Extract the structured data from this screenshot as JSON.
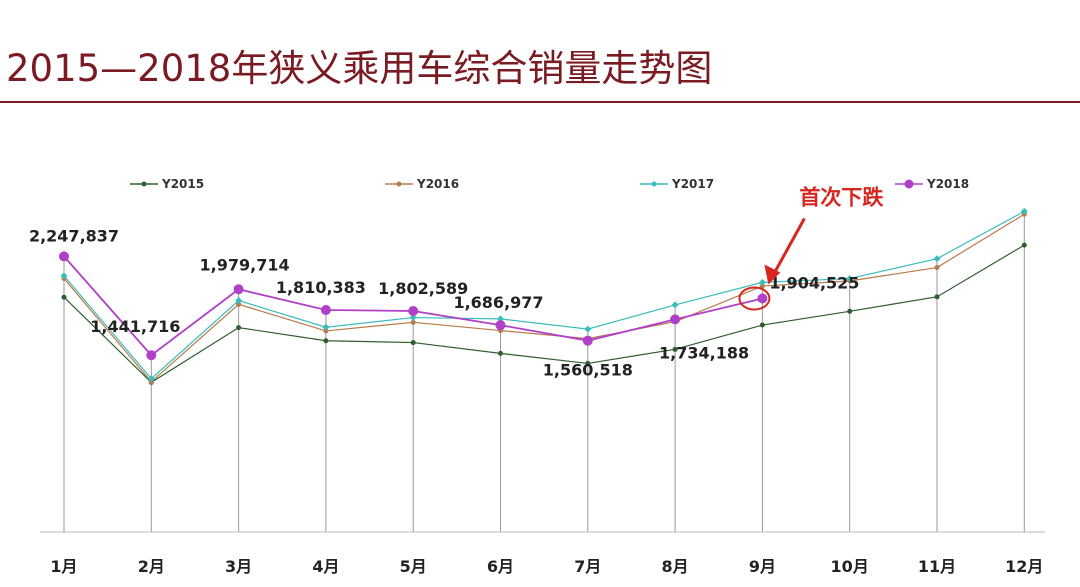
{
  "chart_data": {
    "type": "line",
    "title": "2015—2018年狭义乘用车综合销量走势图",
    "categories": [
      "1月",
      "2月",
      "3月",
      "4月",
      "5月",
      "6月",
      "7月",
      "8月",
      "9月",
      "10月",
      "11月",
      "12月"
    ],
    "ylim": [
      0,
      3000000
    ],
    "legend_position": "top",
    "series": [
      {
        "name": "Y2015",
        "color": "#2e5e2e",
        "values": [
          1915000,
          1220000,
          1667000,
          1560000,
          1545000,
          1457000,
          1375000,
          1490000,
          1688000,
          1800000,
          1918000,
          2340000
        ]
      },
      {
        "name": "Y2016",
        "color": "#b87a4a",
        "values": [
          2068000,
          1225000,
          1857000,
          1640000,
          1710000,
          1643000,
          1577000,
          1715000,
          2006000,
          2047000,
          2157000,
          2592000
        ]
      },
      {
        "name": "Y2017",
        "color": "#3cbcbc",
        "values": [
          2090000,
          1250000,
          1888000,
          1670000,
          1749000,
          1738000,
          1655000,
          1852000,
          2036000,
          2067000,
          2229000,
          2615000
        ]
      },
      {
        "name": "Y2018",
        "color": "#b040c8",
        "values": [
          2247837,
          1441716,
          1979714,
          1810383,
          1802589,
          1686977,
          1560518,
          1734188,
          1904525,
          null,
          null,
          null
        ]
      }
    ],
    "data_labels": [
      "2,247,837",
      "1,441,716",
      "1,979,714",
      "1,810,383",
      "1,802,589",
      "1,686,977",
      "1,560,518",
      "1,734,188",
      "1,904,525"
    ],
    "annotation": {
      "text": "首次下跌",
      "color": "#d6261f"
    }
  }
}
